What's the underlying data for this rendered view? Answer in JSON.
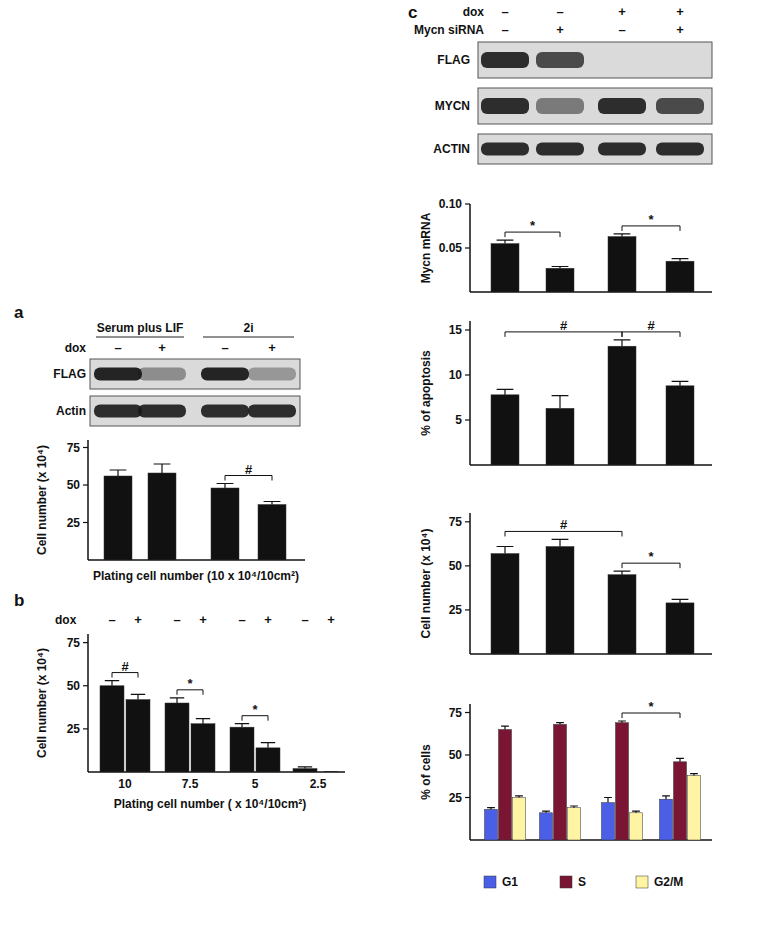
{
  "chart_data": [
    {
      "type": "blot",
      "panel": "a",
      "groups": [
        {
          "label": "Serum plus LIF"
        },
        {
          "label": "2i"
        }
      ],
      "rows": [
        {
          "label": "dox",
          "values": [
            "–",
            "+",
            "–",
            "+"
          ]
        }
      ],
      "bands": [
        {
          "label": "FLAG",
          "intensity": [
            0.95,
            0.4,
            0.95,
            0.35
          ]
        },
        {
          "label": "Actin",
          "intensity": [
            0.9,
            0.9,
            0.9,
            0.9
          ]
        }
      ]
    },
    {
      "type": "bar",
      "categories": [
        null,
        null,
        null,
        null
      ],
      "values": [
        56,
        58,
        48,
        37
      ],
      "errors": [
        4,
        6,
        3,
        2
      ],
      "color": "#111111",
      "ylim": [
        0,
        80
      ],
      "yticks": [
        25,
        50,
        75
      ],
      "y_label": "Cell number (x 10⁴)",
      "x_label": "Plating cell number (10 x 10⁴/10cm²)",
      "annotations": [
        {
          "text": "#",
          "from": 2,
          "to": 3
        }
      ]
    },
    {
      "type": "bar",
      "panel": "b",
      "header": "dox",
      "categories": [
        "10",
        "7.5",
        "5",
        "2.5"
      ],
      "series": [
        {
          "name": "–",
          "color": "#111111",
          "values": [
            50,
            40,
            26,
            2
          ],
          "errors": [
            3,
            3,
            2,
            1
          ]
        },
        {
          "name": "+",
          "color": "#111111",
          "values": [
            42,
            28,
            14,
            0
          ],
          "errors": [
            3,
            3,
            3,
            0
          ]
        }
      ],
      "ylim": [
        0,
        80
      ],
      "yticks": [
        25,
        50,
        75
      ],
      "y_label": "Cell number (x 10⁴)",
      "x_label": "Plating cell number ( x 10⁴/10cm²)",
      "annotations": [
        {
          "text": "#",
          "from": [
            0,
            0
          ],
          "to": [
            0,
            1
          ]
        },
        {
          "text": "*",
          "from": [
            1,
            0
          ],
          "to": [
            1,
            1
          ]
        },
        {
          "text": "*",
          "from": [
            2,
            0
          ],
          "to": [
            2,
            1
          ]
        }
      ]
    },
    {
      "type": "blot",
      "panel": "c",
      "rows": [
        {
          "label": "dox",
          "values": [
            "–",
            "–",
            "+",
            "+"
          ]
        },
        {
          "label": "Mycn siRNA",
          "values": [
            "–",
            "+",
            "–",
            "+"
          ]
        }
      ],
      "bands": [
        {
          "label": "FLAG",
          "intensity": [
            0.9,
            0.75,
            0,
            0
          ]
        },
        {
          "label": "MYCN",
          "intensity": [
            0.9,
            0.5,
            0.9,
            0.75
          ]
        },
        {
          "label": "ACTIN",
          "intensity": [
            0.9,
            0.9,
            0.9,
            0.9
          ]
        }
      ]
    },
    {
      "type": "bar",
      "categories": [
        null,
        null,
        null,
        null
      ],
      "values": [
        0.055,
        0.027,
        0.063,
        0.035
      ],
      "errors": [
        0.004,
        0.002,
        0.003,
        0.003
      ],
      "color": "#111111",
      "ylim": [
        0,
        0.1
      ],
      "yticks": [
        0.05,
        {
          "value": 0.1,
          "label": "0.10"
        }
      ],
      "y_label": "Mycn mRNA",
      "annotations": [
        {
          "text": "*",
          "from": 0,
          "to": 1
        },
        {
          "text": "*",
          "from": 2,
          "to": 3
        }
      ]
    },
    {
      "type": "bar",
      "categories": [
        null,
        null,
        null,
        null
      ],
      "values": [
        7.8,
        6.3,
        13.2,
        8.8
      ],
      "errors": [
        0.6,
        1.4,
        0.7,
        0.5
      ],
      "color": "#111111",
      "ylim": [
        0,
        16
      ],
      "yticks": [
        5,
        10,
        15
      ],
      "y_label": "% of apoptosis",
      "annotations": [
        {
          "text": "#",
          "from": 0,
          "to": 2
        },
        {
          "text": "#",
          "from": 2,
          "to": 3
        }
      ]
    },
    {
      "type": "bar",
      "categories": [
        null,
        null,
        null,
        null
      ],
      "values": [
        57,
        61,
        45,
        29
      ],
      "errors": [
        4,
        4,
        2,
        2
      ],
      "color": "#111111",
      "ylim": [
        0,
        80
      ],
      "yticks": [
        25,
        50,
        75
      ],
      "y_label": "Cell number (x 10⁴)",
      "annotations": [
        {
          "text": "#",
          "from": 0,
          "to": 2
        },
        {
          "text": "*",
          "from": 2,
          "to": 3
        }
      ]
    },
    {
      "type": "bar",
      "categories": [
        null,
        null,
        null,
        null
      ],
      "legend": "bottom",
      "series": [
        {
          "name": "G1",
          "color": "#4a5fe6",
          "values": [
            18,
            16,
            22,
            24
          ],
          "errors": [
            1,
            1,
            3,
            2
          ]
        },
        {
          "name": "S",
          "color": "#7a1633",
          "values": [
            65,
            68,
            69,
            46
          ],
          "errors": [
            2,
            1,
            1,
            2
          ]
        },
        {
          "name": "G2/M",
          "color": "#fff4a3",
          "values": [
            25,
            19,
            16,
            38
          ],
          "errors": [
            1,
            1,
            1,
            1
          ]
        }
      ],
      "ylim": [
        0,
        80
      ],
      "yticks": [
        25,
        50,
        75
      ],
      "y_label": "% of cells",
      "annotations": [
        {
          "text": "*",
          "from": [
            2,
            1
          ],
          "to": [
            3,
            1
          ]
        }
      ]
    }
  ]
}
